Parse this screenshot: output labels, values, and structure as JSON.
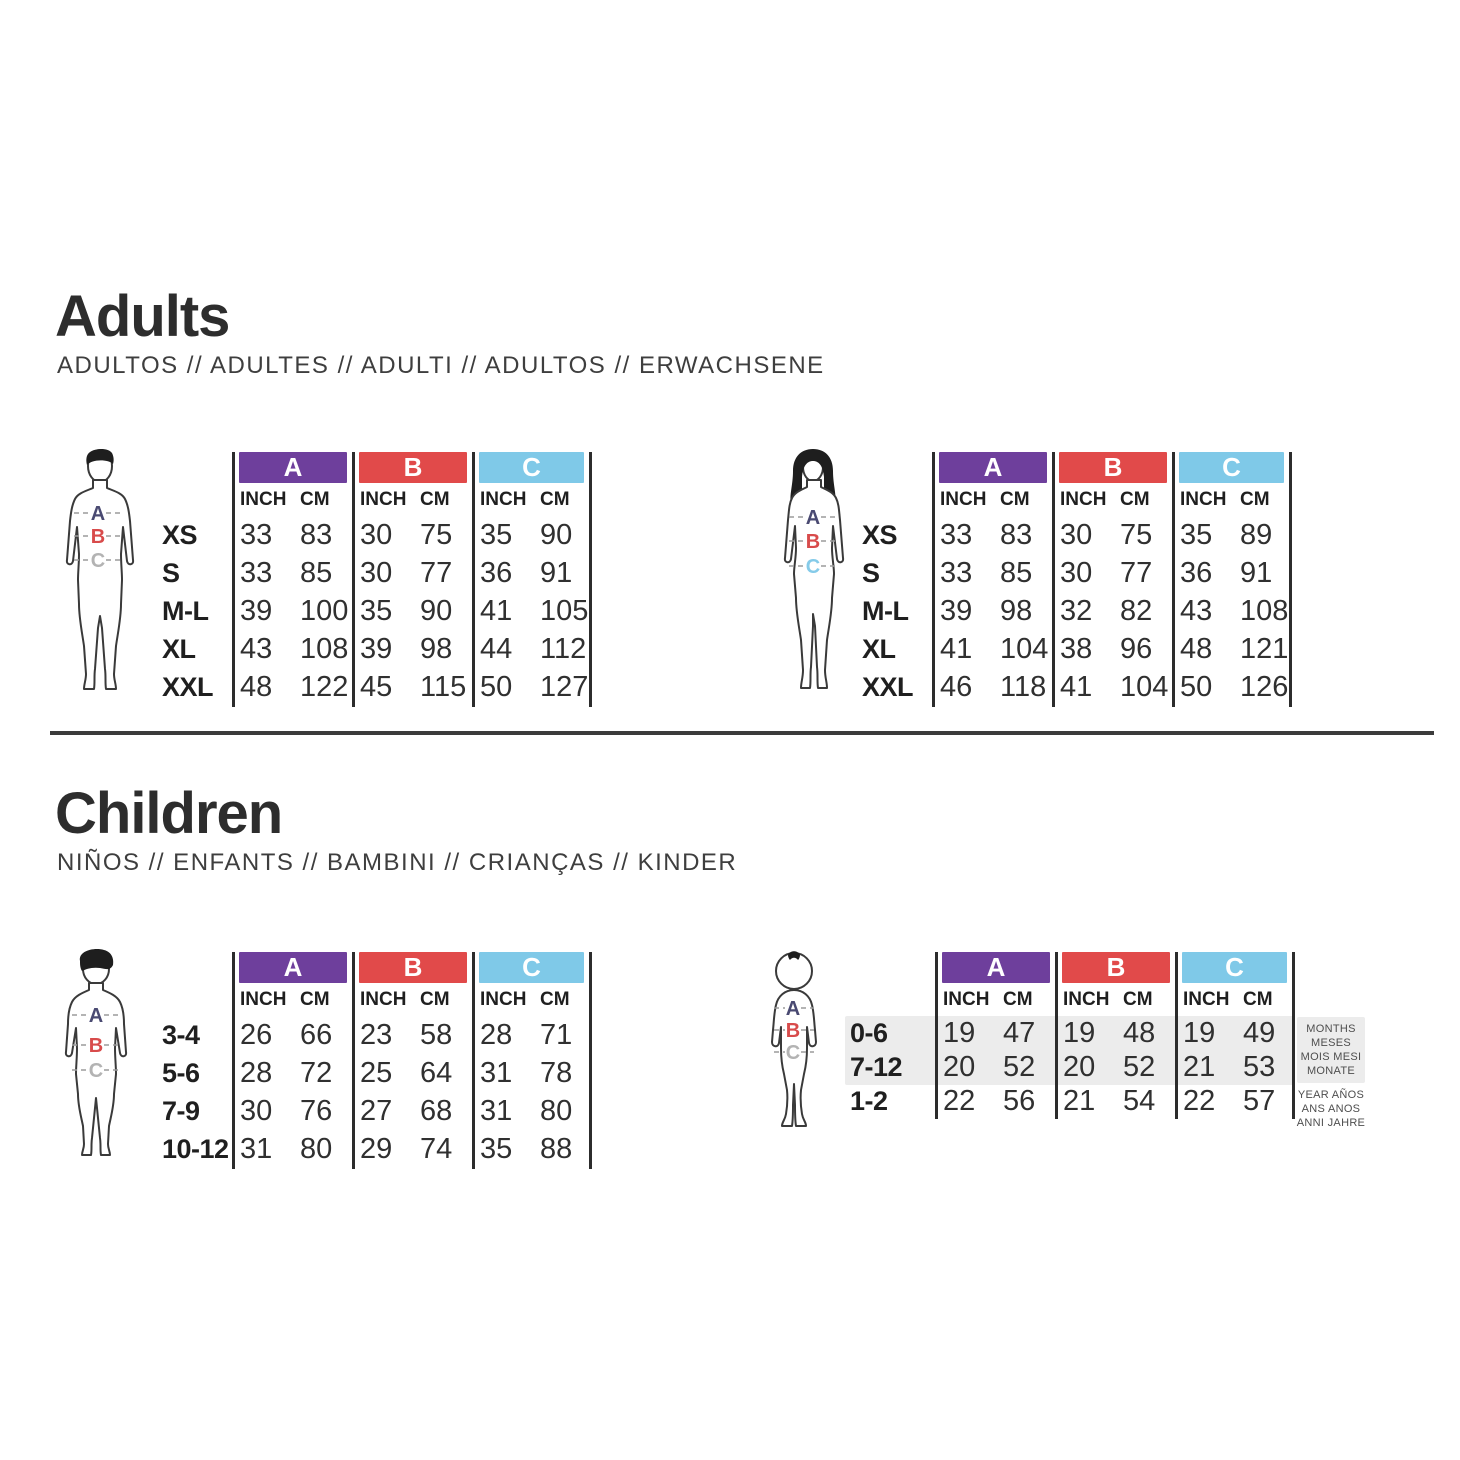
{
  "adults": {
    "title": "Adults",
    "subtitle": "ADULTOS // ADULTES // ADULTI // ADULTOS // ERWACHSENE",
    "men": {
      "figure": "man-figure-icon",
      "measure_points": [
        "A",
        "B",
        "C"
      ],
      "groups": [
        {
          "label": "A",
          "color": "#6e3f9c"
        },
        {
          "label": "B",
          "color": "#e14a4a"
        },
        {
          "label": "C",
          "color": "#7fc9e8"
        }
      ],
      "units": [
        "INCH",
        "CM"
      ],
      "rows": [
        {
          "size": "XS",
          "values": [
            "33",
            "83",
            "30",
            "75",
            "35",
            "90"
          ]
        },
        {
          "size": "S",
          "values": [
            "33",
            "85",
            "30",
            "77",
            "36",
            "91"
          ]
        },
        {
          "size": "M-L",
          "values": [
            "39",
            "100",
            "35",
            "90",
            "41",
            "105"
          ]
        },
        {
          "size": "XL",
          "values": [
            "43",
            "108",
            "39",
            "98",
            "44",
            "112"
          ]
        },
        {
          "size": "XXL",
          "values": [
            "48",
            "122",
            "45",
            "115",
            "50",
            "127"
          ]
        }
      ]
    },
    "women": {
      "figure": "woman-figure-icon",
      "measure_points": [
        "A",
        "B",
        "C"
      ],
      "groups": [
        {
          "label": "A",
          "color": "#6e3f9c"
        },
        {
          "label": "B",
          "color": "#e14a4a"
        },
        {
          "label": "C",
          "color": "#7fc9e8"
        }
      ],
      "units": [
        "INCH",
        "CM"
      ],
      "rows": [
        {
          "size": "XS",
          "values": [
            "33",
            "83",
            "30",
            "75",
            "35",
            "89"
          ]
        },
        {
          "size": "S",
          "values": [
            "33",
            "85",
            "30",
            "77",
            "36",
            "91"
          ]
        },
        {
          "size": "M-L",
          "values": [
            "39",
            "98",
            "32",
            "82",
            "43",
            "108"
          ]
        },
        {
          "size": "XL",
          "values": [
            "41",
            "104",
            "38",
            "96",
            "48",
            "121"
          ]
        },
        {
          "size": "XXL",
          "values": [
            "46",
            "118",
            "41",
            "104",
            "50",
            "126"
          ]
        }
      ]
    }
  },
  "children": {
    "title": "Children",
    "subtitle": "NIÑOS // ENFANTS // BAMBINI // CRIANÇAS // KINDER",
    "kids": {
      "figure": "child-figure-icon",
      "measure_points": [
        "A",
        "B",
        "C"
      ],
      "groups": [
        {
          "label": "A",
          "color": "#6e3f9c"
        },
        {
          "label": "B",
          "color": "#e14a4a"
        },
        {
          "label": "C",
          "color": "#7fc9e8"
        }
      ],
      "units": [
        "INCH",
        "CM"
      ],
      "rows": [
        {
          "size": "3-4",
          "values": [
            "26",
            "66",
            "23",
            "58",
            "28",
            "71"
          ]
        },
        {
          "size": "5-6",
          "values": [
            "28",
            "72",
            "25",
            "64",
            "31",
            "78"
          ]
        },
        {
          "size": "7-9",
          "values": [
            "30",
            "76",
            "27",
            "68",
            "31",
            "80"
          ]
        },
        {
          "size": "10-12",
          "values": [
            "31",
            "80",
            "29",
            "74",
            "35",
            "88"
          ]
        }
      ]
    },
    "baby": {
      "figure": "baby-figure-icon",
      "measure_points": [
        "A",
        "B",
        "C"
      ],
      "groups": [
        {
          "label": "A",
          "color": "#6e3f9c"
        },
        {
          "label": "B",
          "color": "#e14a4a"
        },
        {
          "label": "C",
          "color": "#7fc9e8"
        }
      ],
      "units": [
        "INCH",
        "CM"
      ],
      "rows": [
        {
          "size": "0-6",
          "values": [
            "19",
            "47",
            "19",
            "48",
            "19",
            "49"
          ]
        },
        {
          "size": "7-12",
          "values": [
            "20",
            "52",
            "20",
            "52",
            "21",
            "53"
          ]
        },
        {
          "size": "1-2",
          "values": [
            "22",
            "56",
            "21",
            "54",
            "22",
            "57"
          ]
        }
      ],
      "highlighted_rows": [
        0,
        1
      ],
      "notes": {
        "months": [
          "MONTHS",
          "MESES",
          "MOIS MESI",
          "MONATE"
        ],
        "years": [
          "YEAR AÑOS",
          "ANS ANOS",
          "ANNI JAHRE"
        ]
      }
    }
  }
}
